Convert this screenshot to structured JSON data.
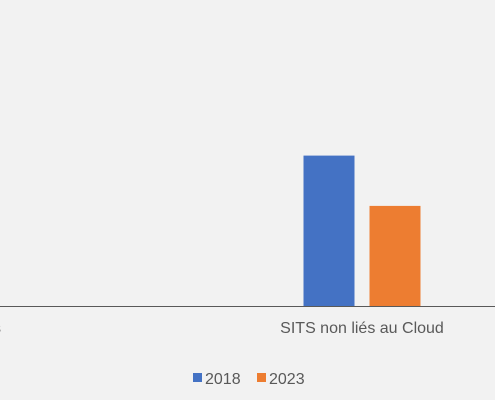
{
  "chart_data": {
    "type": "bar",
    "categories": [
      "s",
      "SITS non liés au Cloud"
    ],
    "series": [
      {
        "name": "2018",
        "values": [
          null,
          30
        ],
        "color": "#4472c4"
      },
      {
        "name": "2023",
        "values": [
          null,
          20
        ],
        "color": "#ed7d31"
      }
    ],
    "title": "",
    "xlabel": "",
    "ylabel": "",
    "ylim": [
      0,
      60
    ],
    "grid": false,
    "legend": "bottom",
    "axis_color": "#595959",
    "text_color": "#595959",
    "background": "#f2f2f2"
  }
}
